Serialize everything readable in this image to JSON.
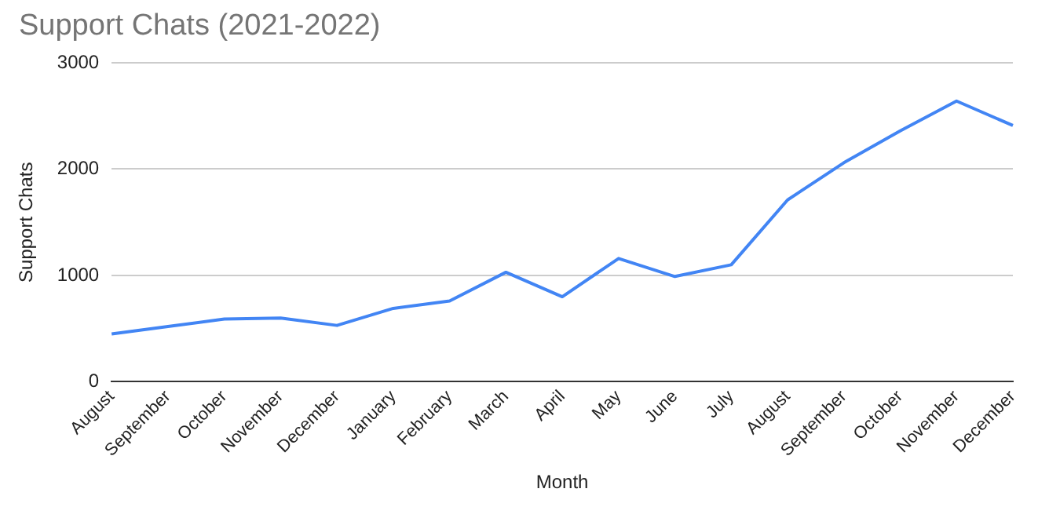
{
  "chart_data": {
    "type": "line",
    "title": "Support Chats (2021-2022)",
    "xlabel": "Month",
    "ylabel": "Support Chats",
    "categories": [
      "August",
      "September",
      "October",
      "November",
      "December",
      "January",
      "February",
      "March",
      "April",
      "May",
      "June",
      "July",
      "August",
      "September",
      "October",
      "November",
      "December"
    ],
    "series": [
      {
        "color": "#4285f4",
        "values": [
          450,
          520,
          590,
          600,
          530,
          690,
          760,
          1030,
          800,
          1160,
          990,
          1100,
          1710,
          2060,
          2360,
          2640,
          2410
        ]
      }
    ],
    "ylim": [
      0,
      3000
    ],
    "yticks": [
      0,
      1000,
      2000,
      3000
    ],
    "grid": "y",
    "legend": false,
    "marker": "none",
    "line_style": "solid"
  }
}
